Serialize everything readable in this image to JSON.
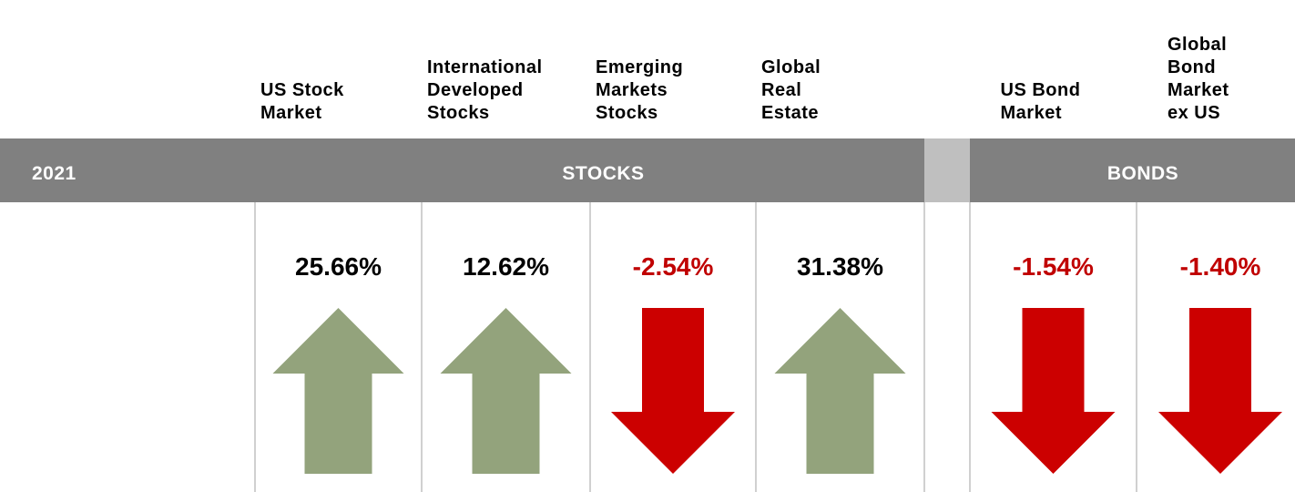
{
  "year": "2021",
  "groups": [
    {
      "label": "STOCKS",
      "columns": [
        {
          "label": [
            "US Stock",
            "Market"
          ],
          "return": "25.66%"
        },
        {
          "label": [
            "International",
            "Developed",
            "Stocks"
          ],
          "return": "12.62%"
        },
        {
          "label": [
            "Emerging",
            "Markets",
            "Stocks"
          ],
          "return": "-2.54%"
        },
        {
          "label": [
            "Global",
            "Real",
            "Estate"
          ],
          "return": "31.38%"
        }
      ]
    },
    {
      "label": "BONDS",
      "columns": [
        {
          "label": [
            "US Bond",
            "Market"
          ],
          "return": "-1.54%"
        },
        {
          "label": [
            "Global",
            "Bond",
            "Market",
            "ex US"
          ],
          "return": "-1.40%"
        }
      ]
    }
  ]
}
